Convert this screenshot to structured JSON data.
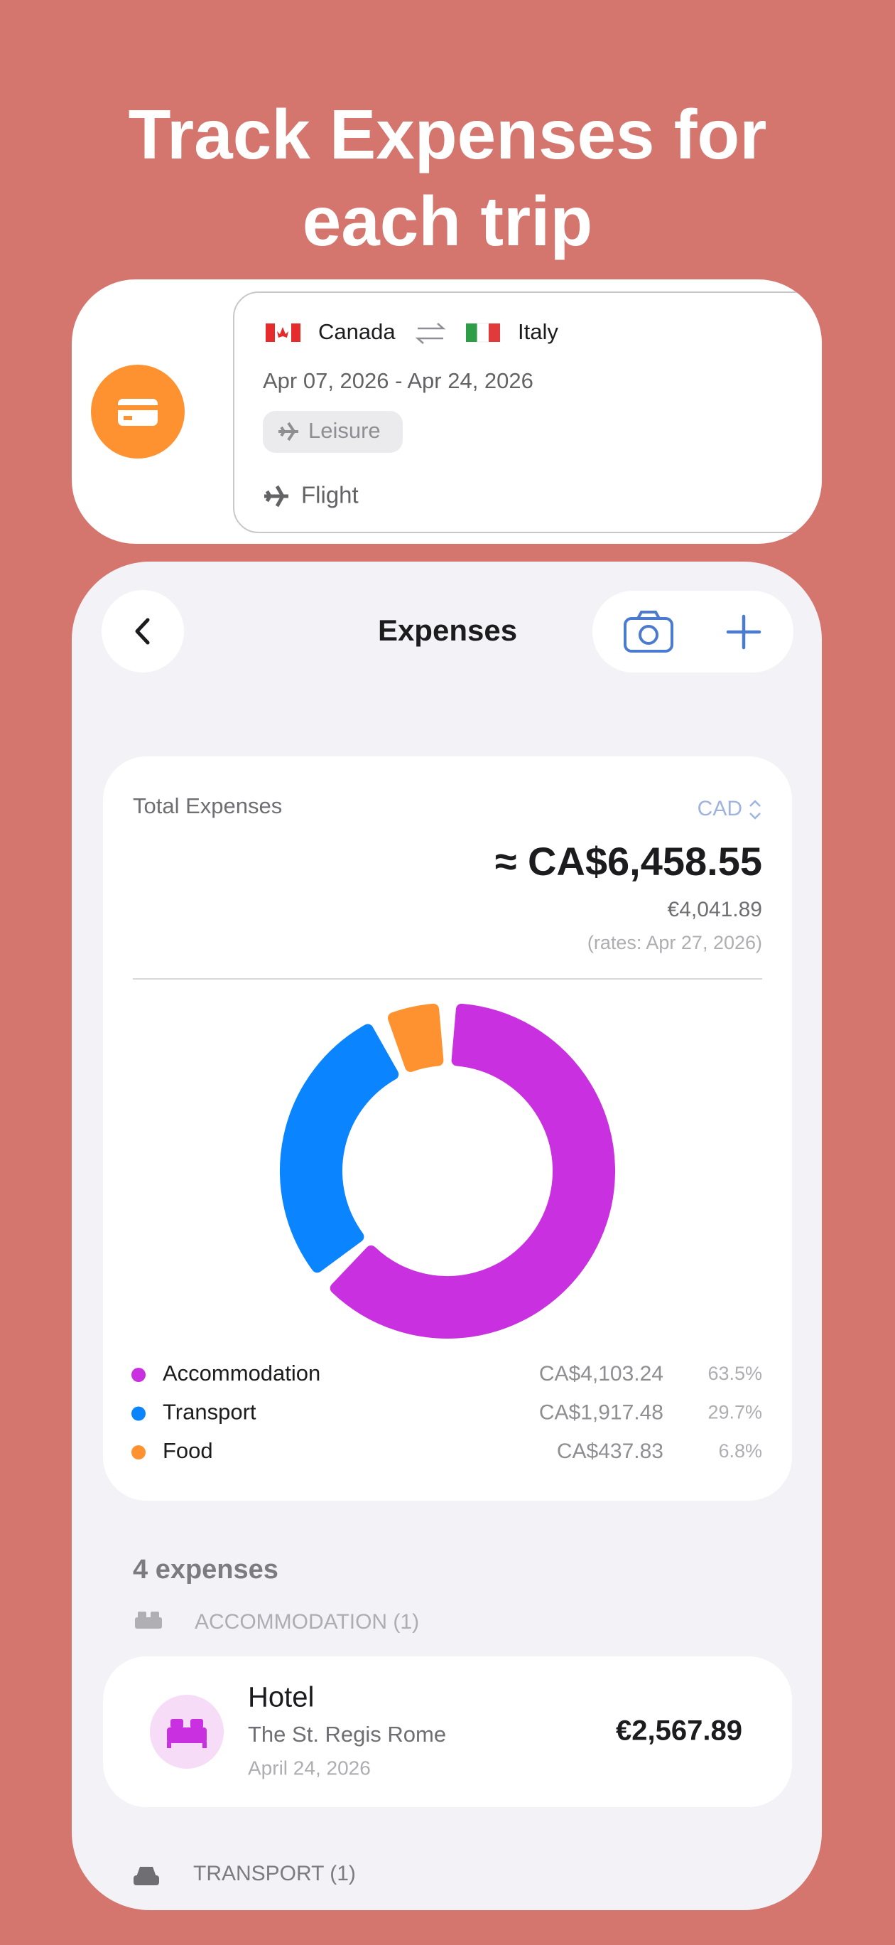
{
  "header": {
    "title_line1": "Track Expenses for",
    "title_line2": "each trip"
  },
  "trip": {
    "origin": "Canada",
    "destination": "Italy",
    "dates": "Apr 07, 2026 - Apr 24, 2026",
    "purpose": "Leisure",
    "transport": "Flight"
  },
  "screen": {
    "title": "Expenses",
    "summary": {
      "label": "Total Expenses",
      "currency": "CAD",
      "total": "≈ CA$6,458.55",
      "converted": "€4,041.89",
      "rates_note": "(rates: Apr 27, 2026)"
    },
    "count": "4 expenses",
    "groups": [
      {
        "heading": "ACCOMMODATION (1)",
        "items": [
          {
            "title": "Hotel",
            "subtitle": "The St. Regis Rome",
            "date": "April 24, 2026",
            "amount": "€2,567.89"
          }
        ]
      },
      {
        "heading": "TRANSPORT (1)"
      }
    ]
  },
  "chart_data": {
    "type": "donut",
    "categories": [
      "Accommodation",
      "Transport",
      "Food"
    ],
    "values": [
      63.5,
      29.7,
      6.8
    ],
    "value_labels": [
      "63.5%",
      "29.7%",
      "6.8%"
    ],
    "amounts": [
      "CA$4,103.24",
      "CA$1,917.48",
      "CA$437.83"
    ],
    "colors": [
      "#c930e0",
      "#0a84ff",
      "#ff9230"
    ]
  }
}
